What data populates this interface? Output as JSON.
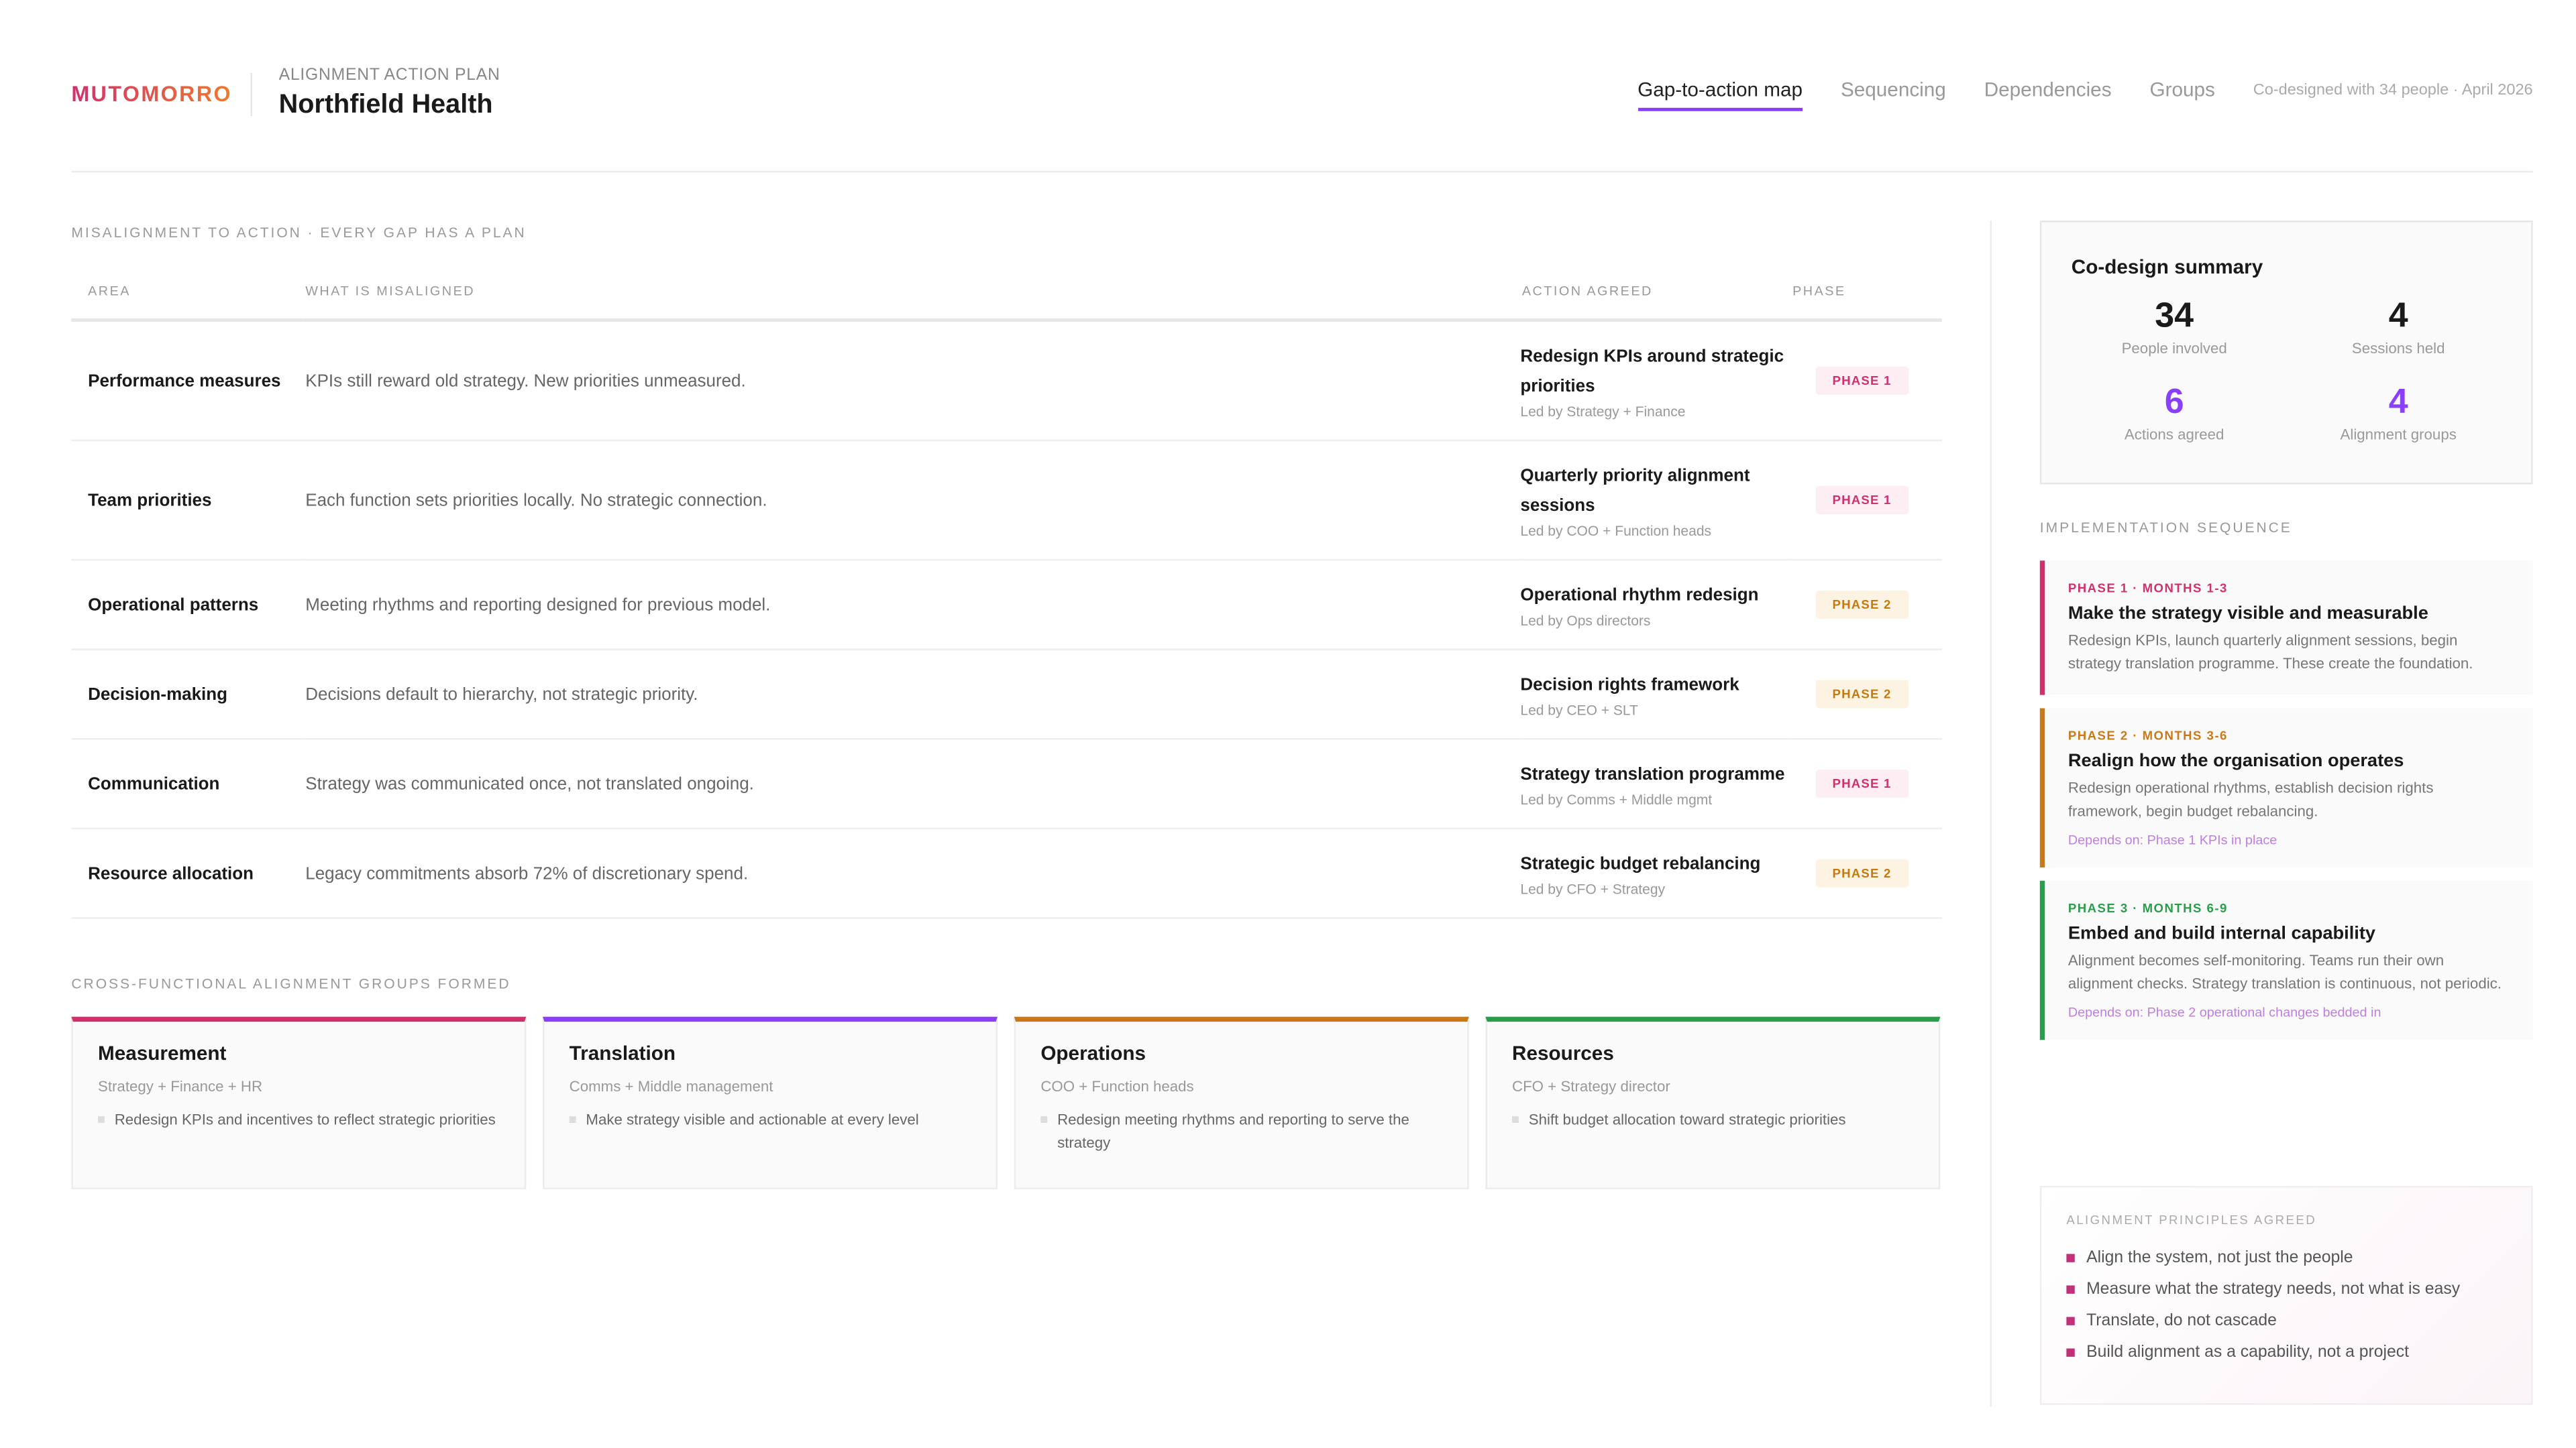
{
  "header": {
    "brand": "MUTOMORRO",
    "eyebrow": "ALIGNMENT ACTION PLAN",
    "title": "Northfield Health",
    "tabs": [
      "Gap-to-action map",
      "Sequencing",
      "Dependencies",
      "Groups"
    ],
    "meta": "Co-designed with 34 people · April 2026"
  },
  "table": {
    "title": "MISALIGNMENT TO ACTION · EVERY GAP HAS A PLAN",
    "columns": [
      "AREA",
      "WHAT IS MISALIGNED",
      "ACTION AGREED",
      "PHASE"
    ],
    "rows": [
      {
        "area": "Performance measures",
        "issue": "KPIs still reward old strategy. New priorities unmeasured.",
        "action": "Redesign KPIs around strategic priorities",
        "lead": "Led by Strategy + Finance",
        "phase": "PHASE 1"
      },
      {
        "area": "Team priorities",
        "issue": "Each function sets priorities locally. No strategic connection.",
        "action": "Quarterly priority alignment sessions",
        "lead": "Led by COO + Function heads",
        "phase": "PHASE 1"
      },
      {
        "area": "Operational patterns",
        "issue": "Meeting rhythms and reporting designed for previous model.",
        "action": "Operational rhythm redesign",
        "lead": "Led by Ops directors",
        "phase": "PHASE 2"
      },
      {
        "area": "Decision-making",
        "issue": "Decisions default to hierarchy, not strategic priority.",
        "action": "Decision rights framework",
        "lead": "Led by CEO + SLT",
        "phase": "PHASE 2"
      },
      {
        "area": "Communication",
        "issue": "Strategy was communicated once, not translated ongoing.",
        "action": "Strategy translation programme",
        "lead": "Led by Comms + Middle mgmt",
        "phase": "PHASE 1"
      },
      {
        "area": "Resource allocation",
        "issue": "Legacy commitments absorb 72% of discretionary spend.",
        "action": "Strategic budget rebalancing",
        "lead": "Led by CFO + Strategy",
        "phase": "PHASE 2"
      }
    ]
  },
  "groups": {
    "title": "CROSS-FUNCTIONAL ALIGNMENT GROUPS FORMED",
    "items": [
      {
        "name": "Measurement",
        "members": "Strategy + Finance + HR",
        "items": [
          "Redesign KPIs and incentives to reflect strategic priorities"
        ]
      },
      {
        "name": "Translation",
        "members": "Comms + Middle management",
        "items": [
          "Make strategy visible and actionable at every level"
        ]
      },
      {
        "name": "Operations",
        "members": "COO + Function heads",
        "items": [
          "Redesign meeting rhythms and reporting to serve the strategy"
        ]
      },
      {
        "name": "Resources",
        "members": "CFO + Strategy director",
        "items": [
          "Shift budget allocation toward strategic priorities"
        ]
      }
    ]
  },
  "summary": {
    "title": "Co-design summary",
    "stats": [
      {
        "value": 34,
        "label": "People involved"
      },
      {
        "value": 4,
        "label": "Sessions held"
      },
      {
        "value": 6,
        "label": "Actions agreed"
      },
      {
        "value": 4,
        "label": "Alignment groups"
      }
    ]
  },
  "sequence": {
    "title": "IMPLEMENTATION SEQUENCE",
    "phases": [
      {
        "label": "PHASE 1 · MONTHS 1-3",
        "title": "Make the strategy visible and measurable",
        "text": "Redesign KPIs, launch quarterly alignment sessions, begin strategy translation programme. These create the foundation."
      },
      {
        "label": "PHASE 2 · MONTHS 3-6",
        "title": "Realign how the organisation operates",
        "text": "Redesign operational rhythms, establish decision rights framework, begin budget rebalancing.",
        "depends": "Depends on: Phase 1 KPIs in place"
      },
      {
        "label": "PHASE 3 · MONTHS 6-9",
        "title": "Embed and build internal capability",
        "text": "Alignment becomes self-monitoring. Teams run their own alignment checks. Strategy translation is continuous, not periodic.",
        "depends": "Depends on: Phase 2 operational changes bedded in"
      }
    ]
  },
  "principles": {
    "title": "ALIGNMENT PRINCIPLES AGREED",
    "items": [
      "Align the system, not just the people",
      "Measure what the strategy needs, not what is easy",
      "Translate, do not cascade",
      "Build alignment as a capability, not a project"
    ]
  }
}
